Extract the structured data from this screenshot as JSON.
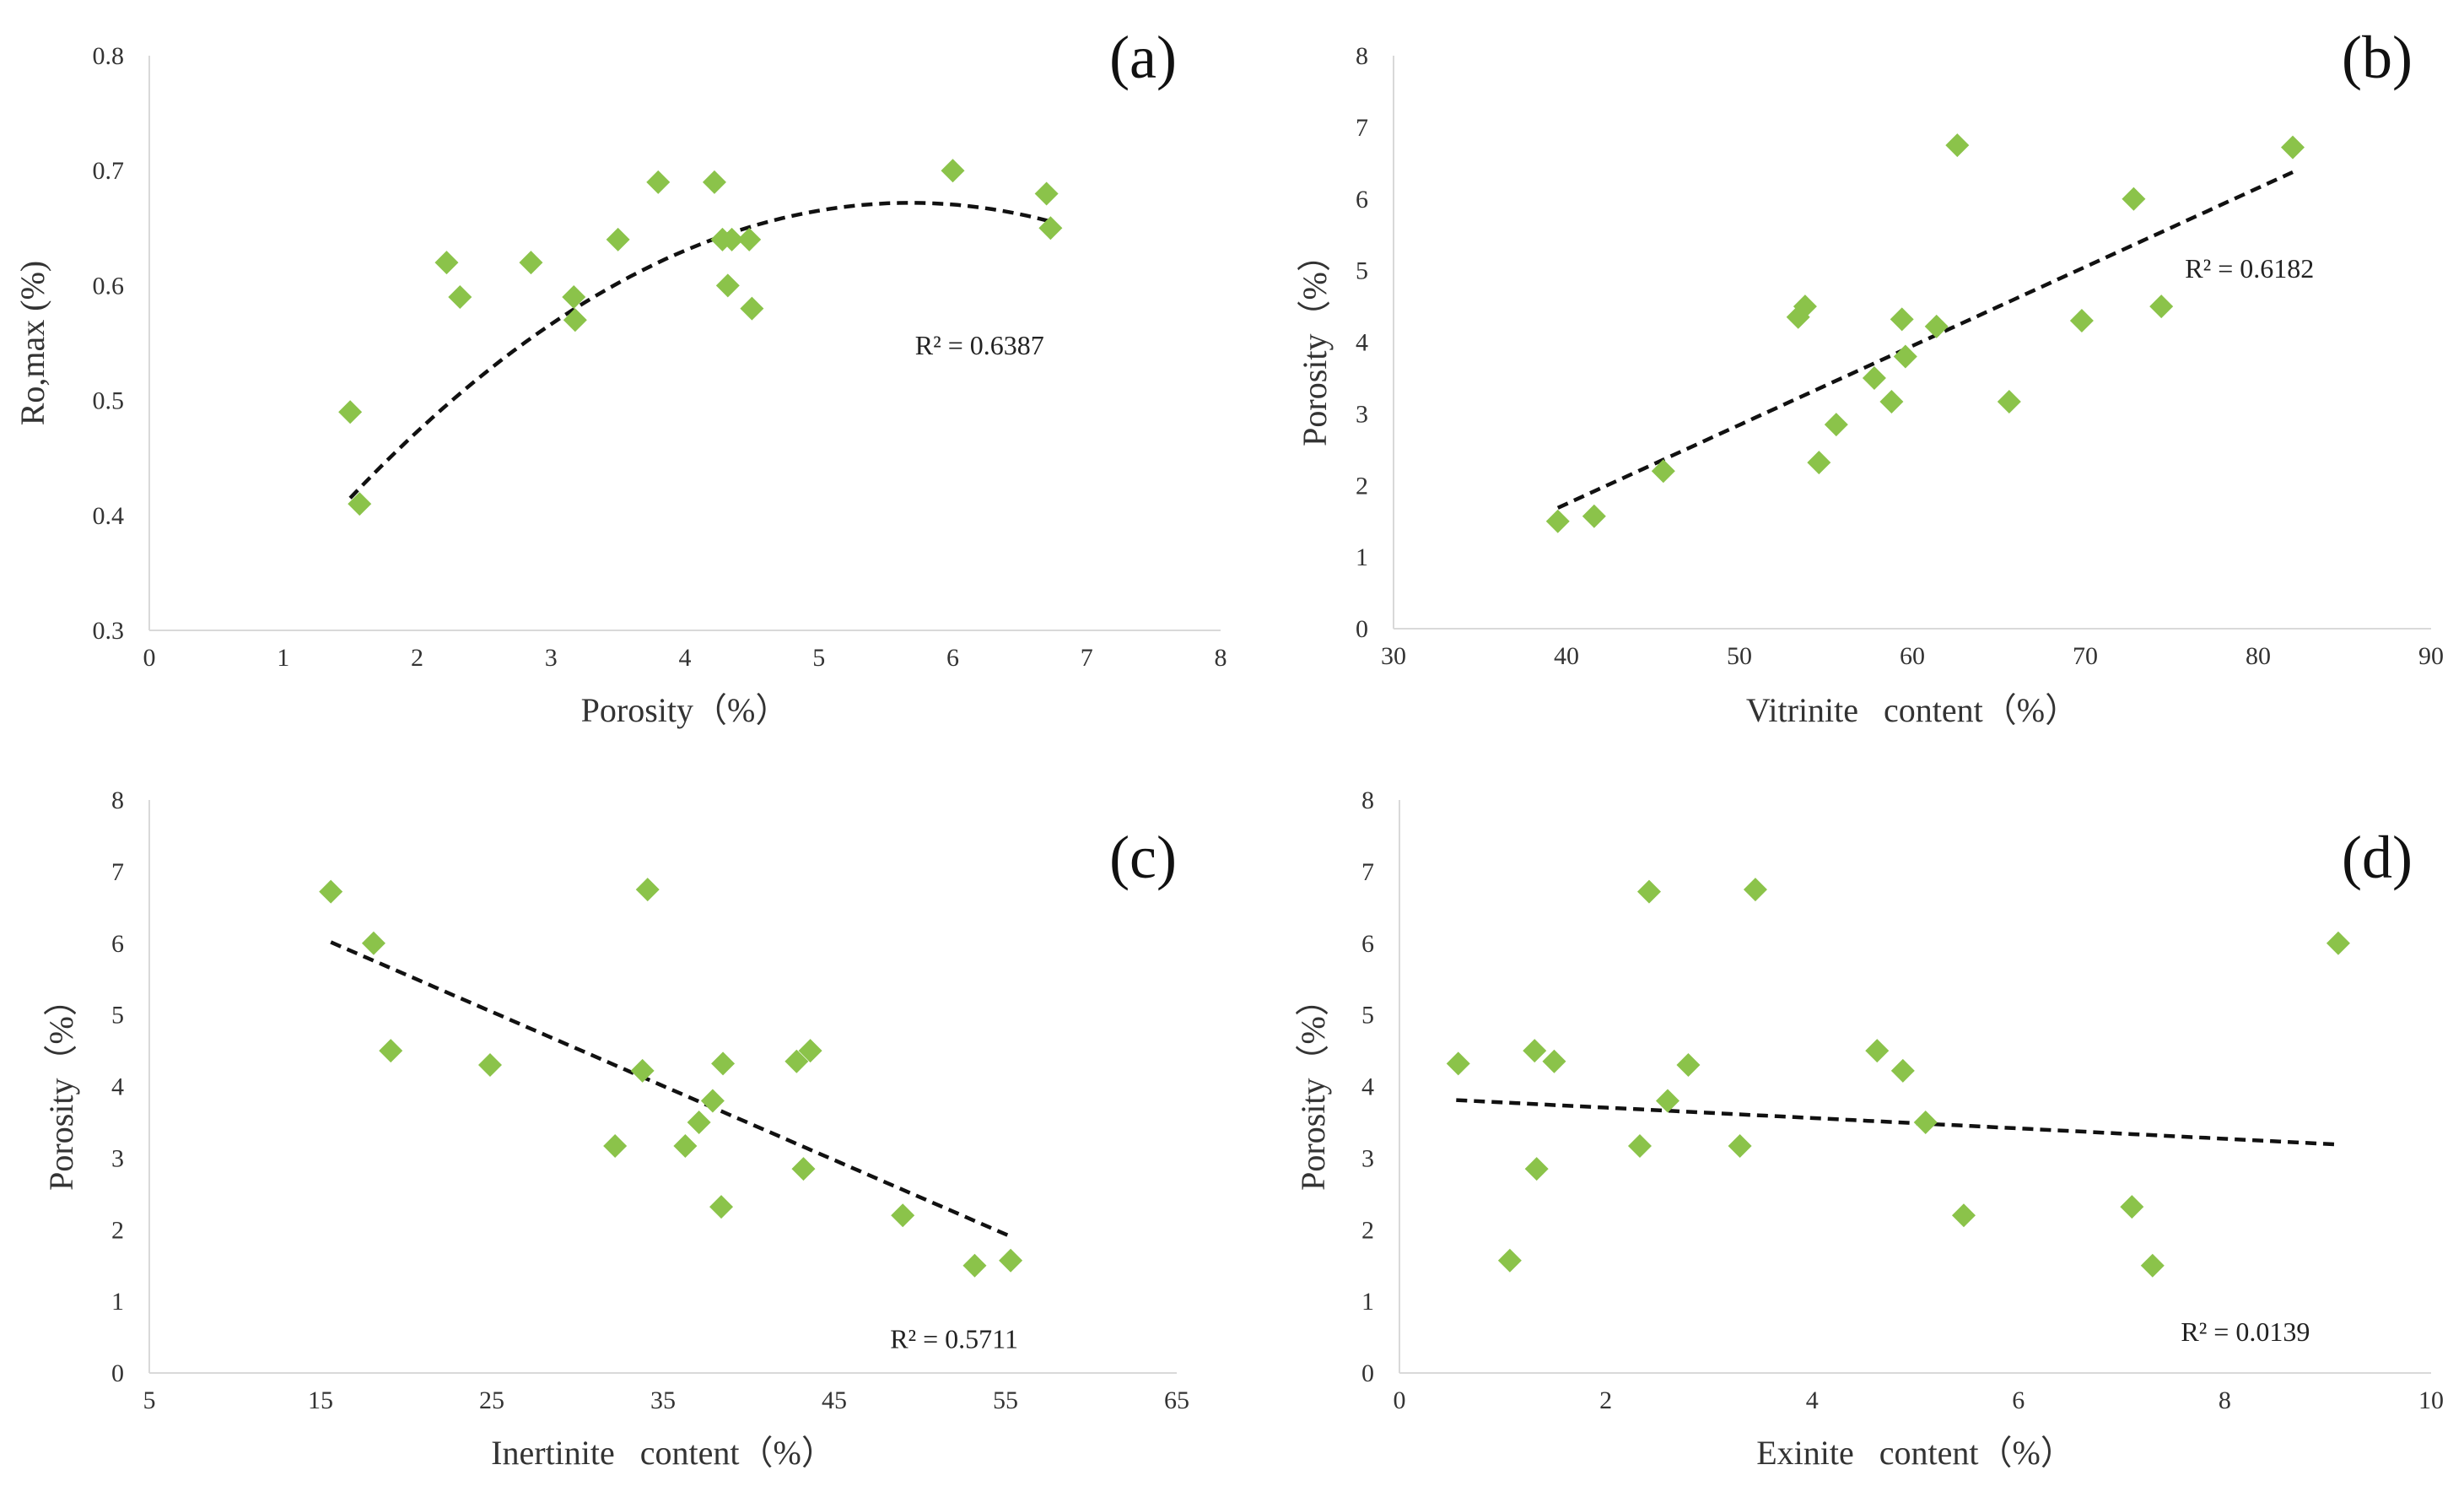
{
  "figure": {
    "background": "#ffffff",
    "point_color": "#8bc34a",
    "trend_color": "#111111"
  },
  "chart_data": [
    {
      "type": "scatter",
      "panel_label": "(a)",
      "xlabel": "Porosity（%）",
      "ylabel": "Ro,max (%)",
      "xlim": [
        0,
        8
      ],
      "ylim": [
        0.3,
        0.8
      ],
      "xticks": [
        0,
        1,
        2,
        3,
        4,
        5,
        6,
        7,
        8
      ],
      "yticks": [
        0.3,
        0.4,
        0.5,
        0.6,
        0.7,
        0.8
      ],
      "ytick_labels": [
        "0.3",
        "0.4",
        "0.5",
        "0.6",
        "0.7",
        "0.8"
      ],
      "r2_label": "R² = 0.6387",
      "r2_at": [
        6.2,
        0.54
      ],
      "trend": {
        "kind": "poly2",
        "coef": [
          -0.0147,
          0.167,
          0.1977
        ],
        "x_range": [
          1.5,
          6.73
        ]
      },
      "points": [
        [
          1.5,
          0.49
        ],
        [
          1.57,
          0.41
        ],
        [
          2.22,
          0.62
        ],
        [
          2.32,
          0.59
        ],
        [
          2.85,
          0.62
        ],
        [
          3.17,
          0.59
        ],
        [
          3.18,
          0.57
        ],
        [
          3.5,
          0.64
        ],
        [
          3.8,
          0.69
        ],
        [
          4.22,
          0.69
        ],
        [
          4.28,
          0.64
        ],
        [
          4.32,
          0.6
        ],
        [
          4.35,
          0.64
        ],
        [
          4.48,
          0.64
        ],
        [
          4.5,
          0.58
        ],
        [
          6.0,
          0.7
        ],
        [
          6.7,
          0.68
        ],
        [
          6.73,
          0.65
        ]
      ]
    },
    {
      "type": "scatter",
      "panel_label": "(b)",
      "xlabel": "Vitrinite   content（%）",
      "ylabel": "Porosity（%）",
      "xlim": [
        30,
        90
      ],
      "ylim": [
        0,
        8
      ],
      "xticks": [
        30,
        40,
        50,
        60,
        70,
        80,
        90
      ],
      "yticks": [
        0,
        1,
        2,
        3,
        4,
        5,
        6,
        7,
        8
      ],
      "ytick_labels": [
        "0",
        "1",
        "2",
        "3",
        "4",
        "5",
        "6",
        "7",
        "8"
      ],
      "r2_label": "R² = 0.6182",
      "r2_at": [
        79.5,
        4.9
      ],
      "trend": {
        "kind": "linear",
        "coef": [
          0.1103,
          -2.67
        ],
        "x_range": [
          39.5,
          82
        ]
      },
      "points": [
        [
          39.5,
          1.5
        ],
        [
          41.6,
          1.57
        ],
        [
          45.6,
          2.2
        ],
        [
          53.4,
          4.35
        ],
        [
          53.8,
          4.5
        ],
        [
          54.6,
          2.32
        ],
        [
          55.6,
          2.85
        ],
        [
          57.8,
          3.5
        ],
        [
          58.8,
          3.17
        ],
        [
          59.4,
          4.32
        ],
        [
          59.6,
          3.8
        ],
        [
          61.4,
          4.22
        ],
        [
          62.6,
          6.75
        ],
        [
          65.6,
          3.17
        ],
        [
          69.8,
          4.3
        ],
        [
          72.8,
          6.0
        ],
        [
          74.4,
          4.5
        ],
        [
          82.0,
          6.72
        ]
      ]
    },
    {
      "type": "scatter",
      "panel_label": "(c)",
      "xlabel": "Inertinite   content（%）",
      "ylabel": "Porosity（%）",
      "xlim": [
        5,
        65
      ],
      "ylim": [
        0,
        8
      ],
      "xticks": [
        5,
        15,
        25,
        35,
        45,
        55,
        65
      ],
      "yticks": [
        0,
        1,
        2,
        3,
        4,
        5,
        6,
        7,
        8
      ],
      "ytick_labels": [
        "0",
        "1",
        "2",
        "3",
        "4",
        "5",
        "6",
        "7",
        "8"
      ],
      "r2_label": "R² = 0.5711",
      "r2_at": [
        52,
        0.35
      ],
      "trend": {
        "kind": "linear",
        "coef": [
          -0.1035,
          7.63
        ],
        "x_range": [
          15.6,
          55.3
        ]
      },
      "points": [
        [
          15.6,
          6.72
        ],
        [
          18.1,
          6.0
        ],
        [
          19.1,
          4.5
        ],
        [
          24.9,
          4.3
        ],
        [
          32.2,
          3.17
        ],
        [
          33.8,
          4.22
        ],
        [
          34.1,
          6.75
        ],
        [
          36.3,
          3.17
        ],
        [
          37.1,
          3.5
        ],
        [
          37.9,
          3.8
        ],
        [
          38.4,
          2.32
        ],
        [
          38.5,
          4.32
        ],
        [
          42.8,
          4.35
        ],
        [
          43.2,
          2.85
        ],
        [
          43.6,
          4.5
        ],
        [
          49.0,
          2.2
        ],
        [
          53.2,
          1.5
        ],
        [
          55.3,
          1.57
        ]
      ]
    },
    {
      "type": "scatter",
      "panel_label": "(d)",
      "xlabel": "Exinite   content（%）",
      "ylabel": "Porosity（%）",
      "xlim": [
        0,
        10
      ],
      "ylim": [
        0,
        8
      ],
      "xticks": [
        0,
        2,
        4,
        6,
        8,
        10
      ],
      "yticks": [
        0,
        1,
        2,
        3,
        4,
        5,
        6,
        7,
        8
      ],
      "ytick_labels": [
        "0",
        "1",
        "2",
        "3",
        "4",
        "5",
        "6",
        "7",
        "8"
      ],
      "r2_label": "R² = 0.0139",
      "r2_at": [
        8.2,
        0.45
      ],
      "trend": {
        "kind": "linear",
        "coef": [
          -0.0725,
          3.85
        ],
        "x_range": [
          0.55,
          9.1
        ]
      },
      "points": [
        [
          0.57,
          4.32
        ],
        [
          1.07,
          1.57
        ],
        [
          1.31,
          4.5
        ],
        [
          1.33,
          2.85
        ],
        [
          1.5,
          4.35
        ],
        [
          2.33,
          3.17
        ],
        [
          2.42,
          6.72
        ],
        [
          2.6,
          3.8
        ],
        [
          2.8,
          4.3
        ],
        [
          3.3,
          3.17
        ],
        [
          3.45,
          6.75
        ],
        [
          4.63,
          4.5
        ],
        [
          4.88,
          4.22
        ],
        [
          5.1,
          3.5
        ],
        [
          5.47,
          2.2
        ],
        [
          7.1,
          2.32
        ],
        [
          7.3,
          1.5
        ],
        [
          9.1,
          6.0
        ]
      ]
    }
  ]
}
